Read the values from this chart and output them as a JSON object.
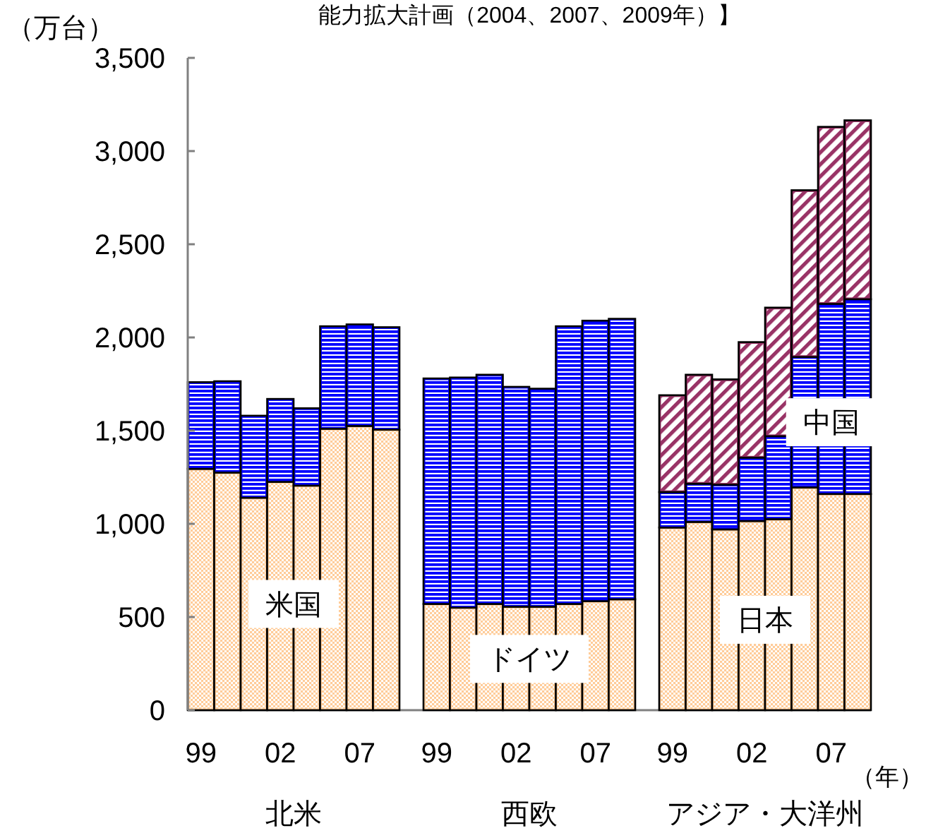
{
  "chart_data": [
    {
      "type": "bar",
      "stacked": true,
      "title": "能力拡大計画（2004、2007、2009年）】",
      "ylabel": "（万台）",
      "xlabel": "北米",
      "categories": [
        "99",
        null,
        null,
        "02",
        null,
        null,
        "07",
        null
      ],
      "series": [
        {
          "name": "米国",
          "color": "#ffcc99",
          "values": [
            1295,
            1275,
            1140,
            1225,
            1205,
            1510,
            1525,
            1505
          ]
        },
        {
          "color": "#0000ff",
          "values": [
            465,
            490,
            440,
            445,
            415,
            550,
            545,
            550
          ]
        }
      ],
      "ylim": [
        0,
        3500
      ],
      "yticks": [
        0,
        500,
        {
          "value": 1000,
          "label": "1,000"
        },
        {
          "value": 1500,
          "label": "1,500"
        },
        {
          "value": 2000,
          "label": "2,000"
        },
        {
          "value": 2500,
          "label": "2,500"
        },
        {
          "value": 3000,
          "label": "3,000"
        },
        {
          "value": 3500,
          "label": "3,500"
        }
      ]
    },
    {
      "type": "bar",
      "stacked": true,
      "xlabel": "西欧",
      "categories": [
        "99",
        null,
        null,
        "02",
        null,
        null,
        "07",
        null
      ],
      "series": [
        {
          "name": "ドイツ",
          "color": "#ffcc99",
          "values": [
            570,
            550,
            570,
            555,
            555,
            570,
            585,
            595
          ]
        },
        {
          "color": "#0000ff",
          "values": [
            1210,
            1235,
            1230,
            1180,
            1170,
            1490,
            1505,
            1505
          ]
        }
      ],
      "ylim": [
        0,
        3500
      ],
      "tick_labels": "x"
    },
    {
      "type": "bar",
      "stacked": true,
      "xlabel": "アジア・大洋州",
      "categories": [
        "99",
        null,
        null,
        "02",
        null,
        null,
        "07",
        null
      ],
      "series": [
        {
          "name": "日本",
          "color": "#ffcc99",
          "values": [
            980,
            1010,
            970,
            1015,
            1025,
            1195,
            1160,
            1160
          ]
        },
        {
          "name": "中国",
          "color": "#0000ff",
          "values": [
            190,
            205,
            240,
            340,
            445,
            700,
            1020,
            1045
          ]
        },
        {
          "color": "#993366",
          "values": [
            520,
            585,
            565,
            620,
            690,
            895,
            950,
            960
          ]
        }
      ],
      "ylim": [
        0,
        3500
      ],
      "tick_labels": "x",
      "annotations": [
        "（年）"
      ]
    }
  ]
}
